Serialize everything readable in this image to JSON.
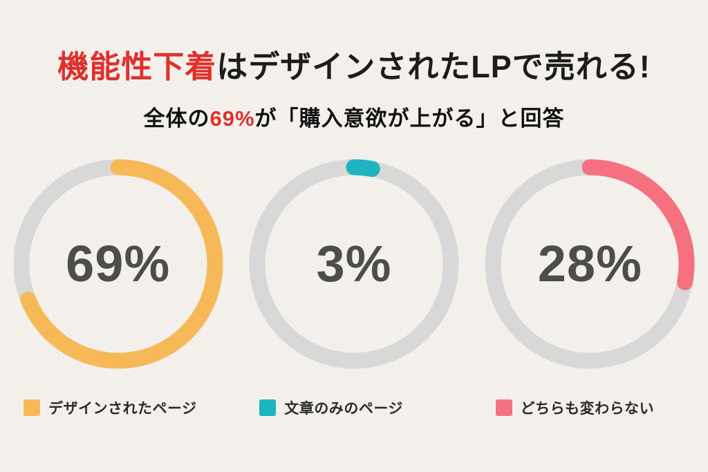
{
  "title": {
    "highlight": "機能性下着",
    "rest": "はデザインされたLPで売れる!",
    "highlight_color": "#e0302c"
  },
  "subtitle": {
    "before": "全体の",
    "highlight": "69%",
    "after": "が「購入意欲が上がる」と回答",
    "highlight_color": "#e0302c"
  },
  "chart_data": {
    "type": "pie",
    "variant": "three-donut-rings",
    "title": "機能性下着はデザインされたLPで売れる!",
    "subtitle": "全体の69%が「購入意欲が上がる」と回答",
    "unit": "%",
    "track_color": "#d8d8d8",
    "value_text_color": "#4d4d4d",
    "legend_position": "bottom",
    "rings": [
      {
        "label": "デザインされたページ",
        "value": 69,
        "display": "69%",
        "color": "#f7b957"
      },
      {
        "label": "文章のみのページ",
        "value": 3,
        "display": "3%",
        "color": "#1cb4c0"
      },
      {
        "label": "どちらも変わらない",
        "value": 28,
        "display": "28%",
        "color": "#f5717f"
      }
    ]
  }
}
